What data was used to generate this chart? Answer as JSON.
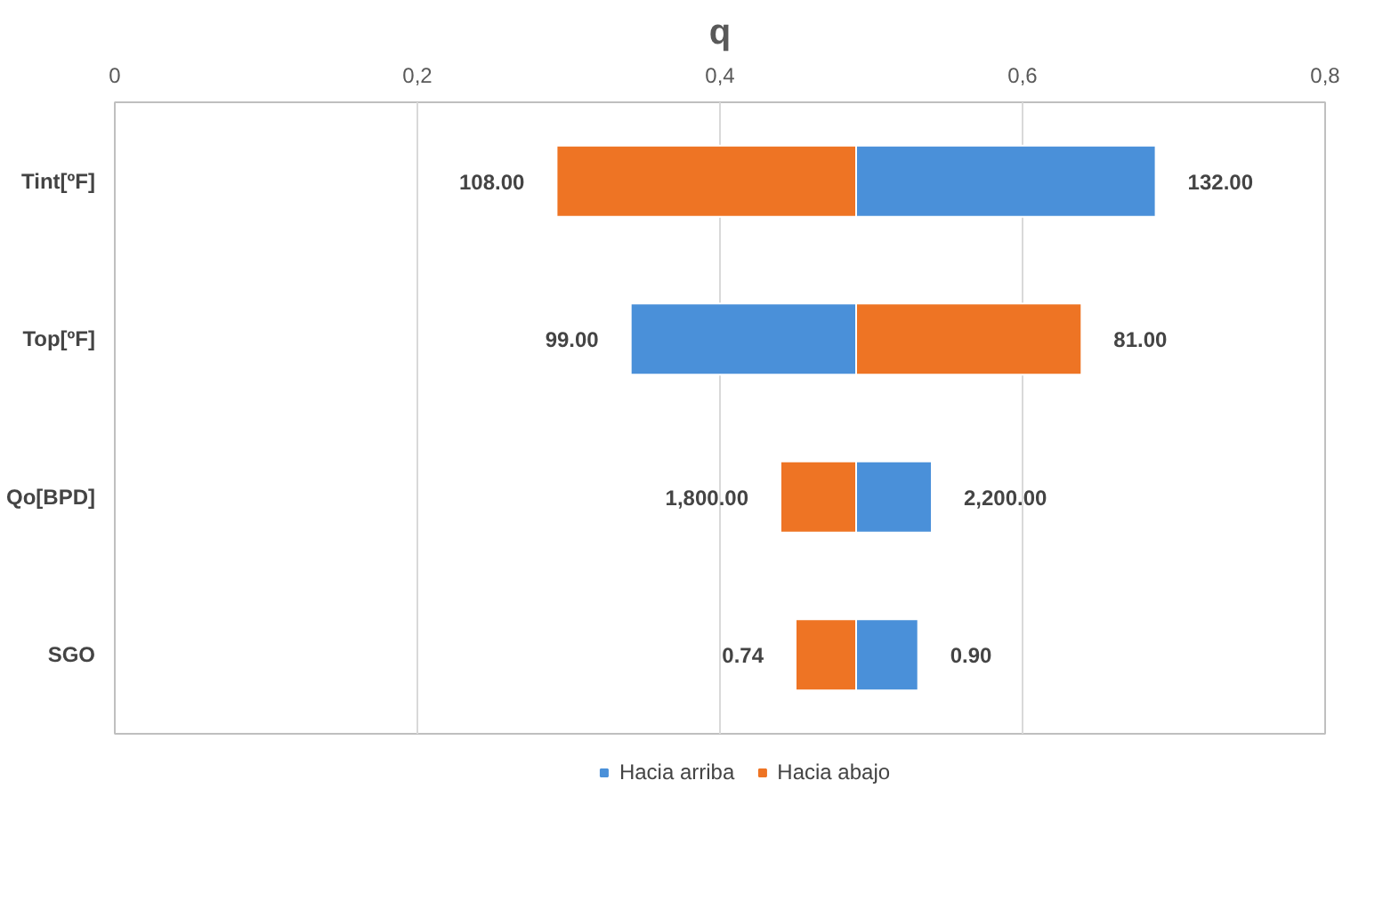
{
  "chart_data": {
    "type": "bar",
    "orientation": "horizontal",
    "title": "q",
    "categories": [
      "Tint[ºF]",
      "Top[ºF]",
      "Qo[BPD]",
      "SGO"
    ],
    "xlim": [
      0,
      0.8
    ],
    "xticks": [
      {
        "value": 0,
        "label": "0"
      },
      {
        "value": 0.2,
        "label": "0,2"
      },
      {
        "value": 0.4,
        "label": "0,4"
      },
      {
        "value": 0.6,
        "label": "0,6"
      },
      {
        "value": 0.8,
        "label": "0,8"
      }
    ],
    "grid": "x",
    "legend": "bottom",
    "series": [
      {
        "name": "Hacia arriba",
        "color": "#4a90d9",
        "base": [
          0.49,
          0.341,
          0.49,
          0.49
        ],
        "values": [
          0.198,
          0.149,
          0.05,
          0.041
        ]
      },
      {
        "name": "Hacia abajo",
        "color": "#ee7424",
        "base": [
          0.292,
          0.49,
          0.44,
          0.45
        ],
        "values": [
          0.198,
          0.149,
          0.05,
          0.04
        ]
      }
    ],
    "annotations": [
      {
        "text": "108.00",
        "x": 0.292,
        "y": "Tint[ºF]"
      },
      {
        "text": "132.00",
        "x": 0.688,
        "y": "Tint[ºF]"
      },
      {
        "text": "99.00",
        "x": 0.341,
        "y": "Top[ºF]"
      },
      {
        "text": "81.00",
        "x": 0.639,
        "y": "Top[ºF]"
      },
      {
        "text": "1,800.00",
        "x": 0.44,
        "y": "Qo[BPD]"
      },
      {
        "text": "2,200.00",
        "x": 0.54,
        "y": "Qo[BPD]"
      },
      {
        "text": "0.74",
        "x": 0.45,
        "y": "SGO"
      },
      {
        "text": "0.90",
        "x": 0.531,
        "y": "SGO"
      }
    ]
  }
}
